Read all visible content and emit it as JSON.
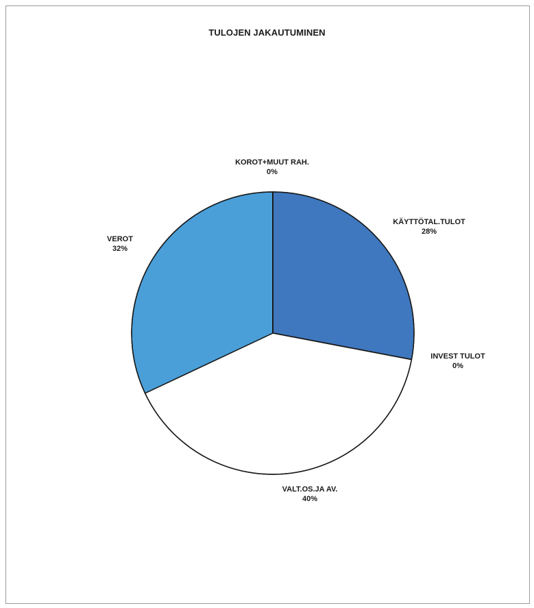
{
  "chart_data": {
    "type": "pie",
    "title": "TULOJEN JAKAUTUMINEN",
    "slices": [
      {
        "name": "KÄYTTÖTAL.TULOT",
        "value": 28,
        "pct_label": "28%",
        "color": "#3f78bf"
      },
      {
        "name": "INVEST TULOT",
        "value": 0,
        "pct_label": "0%",
        "color": "#ffffff"
      },
      {
        "name": "VALT.OS.JA AV.",
        "value": 40,
        "pct_label": "40%",
        "color": "#ffffff"
      },
      {
        "name": "VEROT",
        "value": 32,
        "pct_label": "32%",
        "color": "#4a9fd8"
      },
      {
        "name": "KOROT+MUUT RAH.",
        "value": 0,
        "pct_label": "0%",
        "color": "#2f5f9e"
      }
    ],
    "start_angle_deg": 0,
    "direction": "clockwise",
    "legend": "none"
  }
}
